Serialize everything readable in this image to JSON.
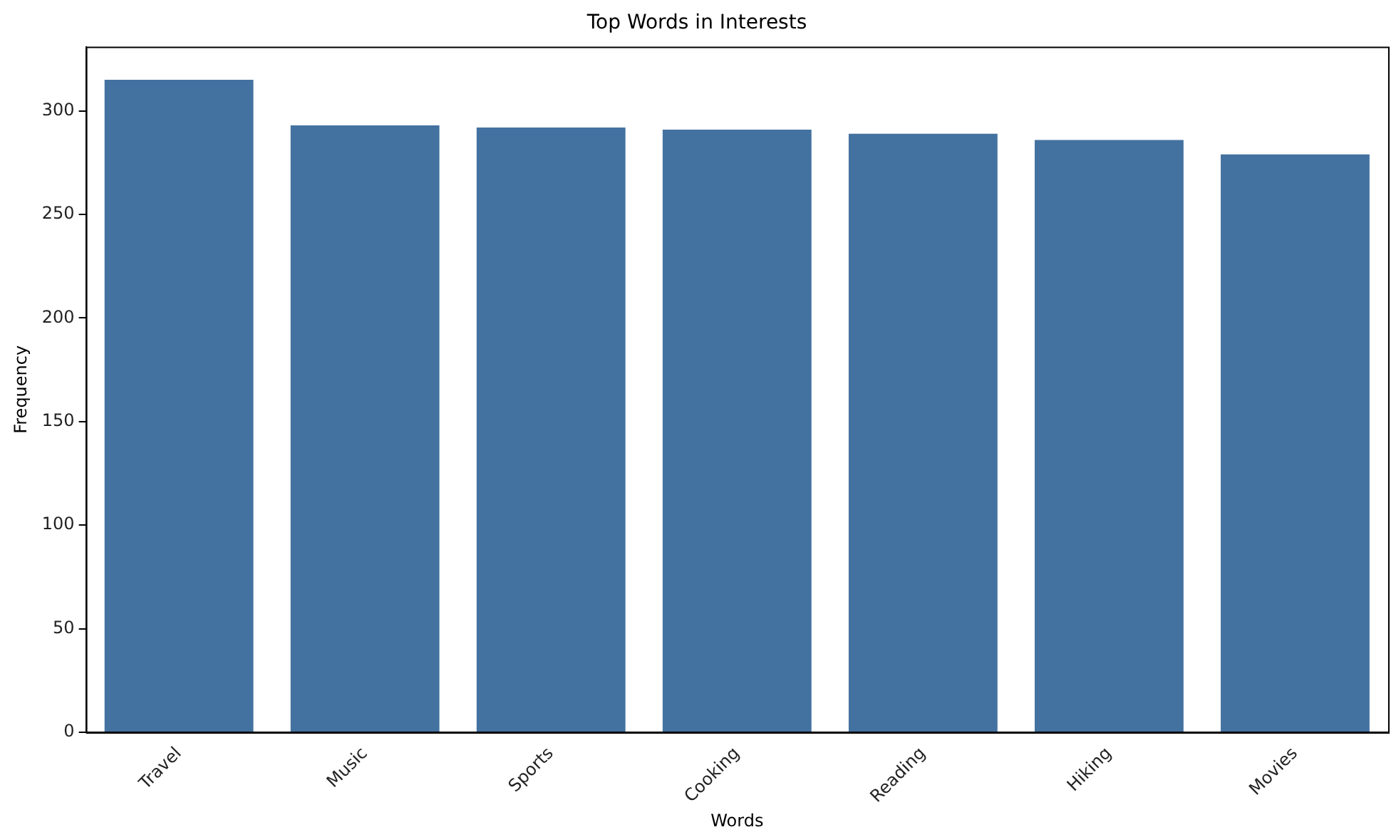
{
  "chart_data": {
    "type": "bar",
    "title": "Top Words in Interests",
    "xlabel": "Words",
    "ylabel": "Frequency",
    "categories": [
      "Travel",
      "Music",
      "Sports",
      "Cooking",
      "Reading",
      "Hiking",
      "Movies"
    ],
    "values": [
      315,
      293,
      292,
      291,
      289,
      286,
      279
    ],
    "color": "#4472a0",
    "ylim": [
      0,
      331
    ],
    "yticks": [
      0,
      50,
      100,
      150,
      200,
      250,
      300
    ],
    "grid": false,
    "legend": false
  }
}
